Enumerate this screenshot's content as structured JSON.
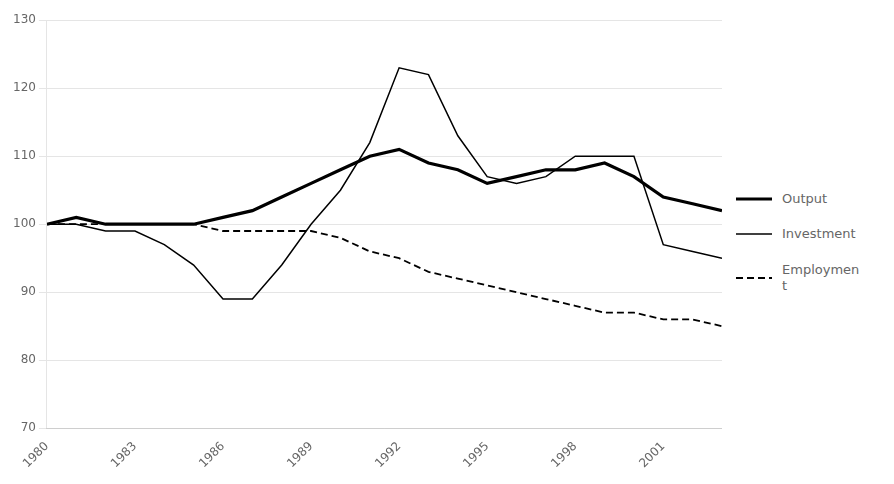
{
  "chart_data": {
    "type": "line",
    "x": [
      1980,
      1981,
      1982,
      1983,
      1984,
      1985,
      1986,
      1987,
      1988,
      1989,
      1990,
      1991,
      1992,
      1993,
      1994,
      1995,
      1996,
      1997,
      1998,
      1999,
      2000,
      2001,
      2002,
      2003
    ],
    "series": [
      {
        "name": "Output",
        "color": "#000000",
        "line_style": "solid",
        "values": [
          100,
          101,
          100,
          100,
          100,
          100,
          101,
          102,
          104,
          106,
          108,
          110,
          111,
          109,
          108,
          106,
          107,
          108,
          108,
          109,
          107,
          104,
          103,
          102
        ]
      },
      {
        "name": "Investment",
        "color": "#000000",
        "line_style": "solid",
        "values": [
          100,
          100,
          99,
          99,
          97,
          94,
          89,
          89,
          94,
          100,
          105,
          112,
          123,
          122,
          113,
          107,
          106,
          107,
          110,
          110,
          110,
          97,
          96,
          95
        ]
      },
      {
        "name": "Employmen\nt",
        "color": "#000000",
        "line_style": "dashed",
        "values": [
          100,
          100,
          100,
          100,
          100,
          100,
          99,
          99,
          99,
          99,
          98,
          96,
          95,
          93,
          92,
          91,
          90,
          89,
          88,
          87,
          87,
          86,
          86,
          85
        ]
      }
    ],
    "xlim": [
      1980,
      2003
    ],
    "xticks": [
      1980,
      1983,
      1986,
      1989,
      1992,
      1995,
      1998,
      2001
    ],
    "ylim": [
      70,
      130
    ],
    "yticks": [
      70,
      80,
      90,
      100,
      110,
      120,
      130
    ],
    "grid": "y",
    "legend": "right"
  }
}
